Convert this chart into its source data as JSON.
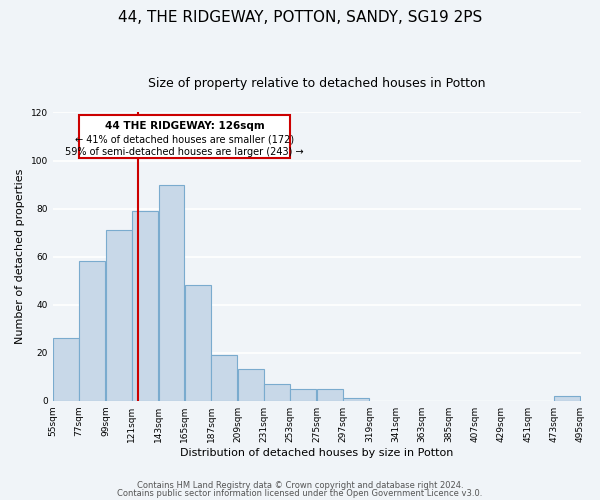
{
  "title": "44, THE RIDGEWAY, POTTON, SANDY, SG19 2PS",
  "subtitle": "Size of property relative to detached houses in Potton",
  "xlabel": "Distribution of detached houses by size in Potton",
  "ylabel": "Number of detached properties",
  "bar_edges": [
    55,
    77,
    99,
    121,
    143,
    165,
    187,
    209,
    231,
    253,
    275,
    297,
    319,
    341,
    363,
    385,
    407,
    429,
    451,
    473,
    495
  ],
  "bar_heights": [
    26,
    58,
    71,
    79,
    90,
    48,
    19,
    13,
    7,
    5,
    5,
    1,
    0,
    0,
    0,
    0,
    0,
    0,
    0,
    2
  ],
  "bar_color": "#c8d8e8",
  "bar_edge_color": "#7aabce",
  "vline_x": 126,
  "vline_color": "#cc0000",
  "ylim": [
    0,
    120
  ],
  "xlim": [
    55,
    495
  ],
  "annotation_title": "44 THE RIDGEWAY: 126sqm",
  "annotation_line1": "← 41% of detached houses are smaller (172)",
  "annotation_line2": "59% of semi-detached houses are larger (243) →",
  "annotation_box_color": "#cc0000",
  "annotation_text_color": "#000000",
  "footer_line1": "Contains HM Land Registry data © Crown copyright and database right 2024.",
  "footer_line2": "Contains public sector information licensed under the Open Government Licence v3.0.",
  "tick_labels": [
    "55sqm",
    "77sqm",
    "99sqm",
    "121sqm",
    "143sqm",
    "165sqm",
    "187sqm",
    "209sqm",
    "231sqm",
    "253sqm",
    "275sqm",
    "297sqm",
    "319sqm",
    "341sqm",
    "363sqm",
    "385sqm",
    "407sqm",
    "429sqm",
    "451sqm",
    "473sqm",
    "495sqm"
  ],
  "tick_positions": [
    55,
    77,
    99,
    121,
    143,
    165,
    187,
    209,
    231,
    253,
    275,
    297,
    319,
    341,
    363,
    385,
    407,
    429,
    451,
    473,
    495
  ],
  "background_color": "#f0f4f8",
  "grid_color": "#ffffff",
  "title_fontsize": 11,
  "subtitle_fontsize": 9,
  "axis_fontsize": 8,
  "tick_fontsize": 6.5,
  "footer_fontsize": 6,
  "yticks": [
    0,
    20,
    40,
    60,
    80,
    100,
    120
  ]
}
